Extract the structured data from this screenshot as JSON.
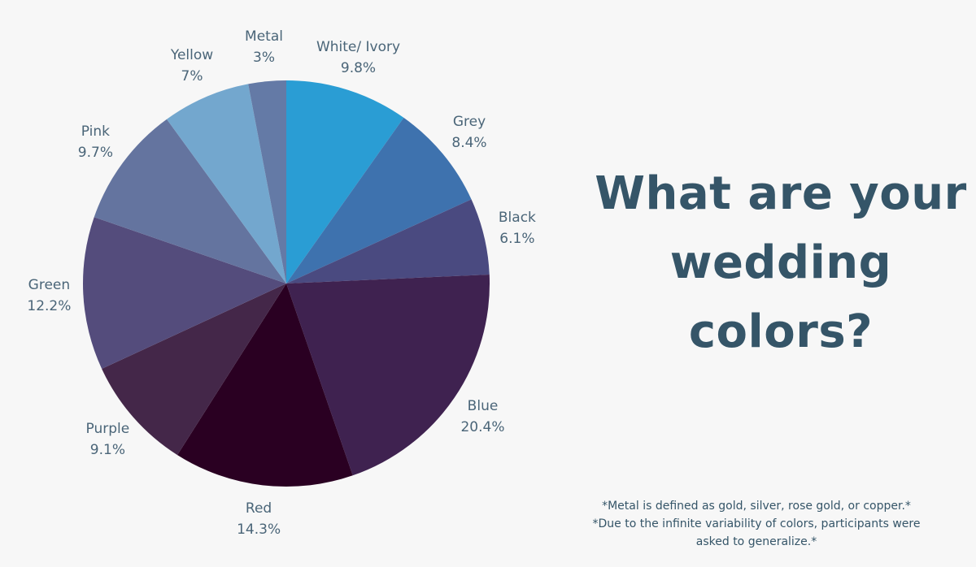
{
  "chart_data": {
    "type": "pie",
    "title": "",
    "categories": [
      "White/ Ivory",
      "Grey",
      "Black",
      "Blue",
      "Red",
      "Purple",
      "Green",
      "Pink",
      "Yellow",
      "Metal"
    ],
    "values": [
      9.8,
      8.4,
      6.1,
      20.4,
      14.3,
      9.1,
      12.2,
      9.7,
      7,
      3
    ],
    "value_labels": [
      "9.8%",
      "8.4%",
      "6.1%",
      "20.4%",
      "14.3%",
      "9.1%",
      "12.2%",
      "9.7%",
      "7%",
      "3%"
    ],
    "colors": [
      "#2a9dd4",
      "#3e72ae",
      "#4a4a80",
      "#3f2250",
      "#2a0022",
      "#442749",
      "#544c7c",
      "#64749f",
      "#73a7ce",
      "#647aa6"
    ],
    "start": "12 o'clock",
    "direction": "clockwise",
    "legend": "none"
  },
  "headline": {
    "line1": "What are your",
    "line2": "wedding",
    "line3": "colors?"
  },
  "footnotes": {
    "line1": "*Metal is defined as gold, silver, rose gold, or copper.*",
    "line2": "*Due to the infinite variability of colors, participants were",
    "line3": "asked to generalize.*"
  },
  "colors": {
    "background": "#f7f7f7",
    "headline": "#355568",
    "label": "#4a6578"
  }
}
